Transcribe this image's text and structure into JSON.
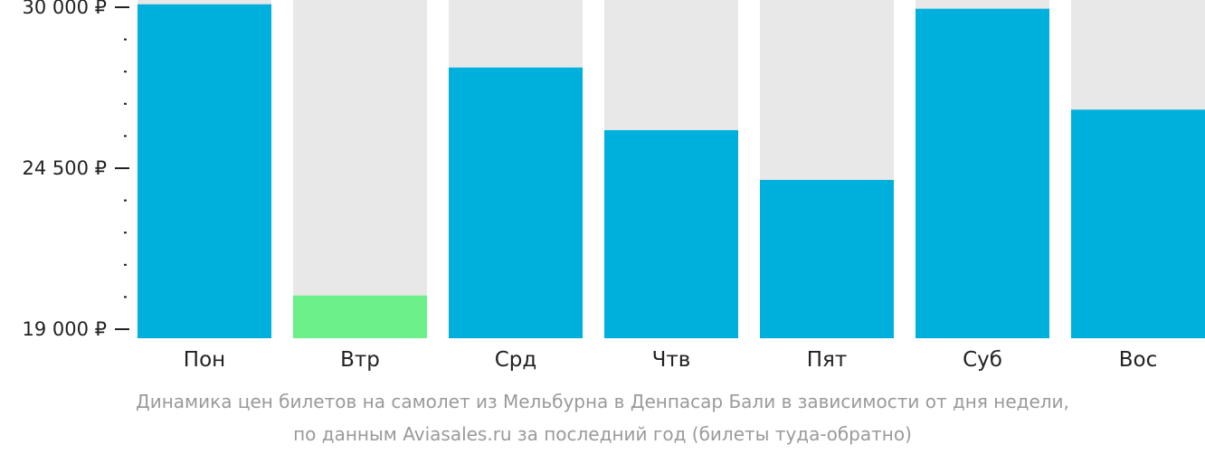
{
  "chart_data": {
    "type": "bar",
    "categories": [
      "Пон",
      "Втр",
      "Срд",
      "Чтв",
      "Пят",
      "Суб",
      "Вос"
    ],
    "values": [
      30100,
      20150,
      27940,
      25800,
      24100,
      29950,
      26500
    ],
    "ylim": [
      19000,
      30000
    ],
    "y_ticks": [
      {
        "value": 30000,
        "label": "30 000 ₽"
      },
      {
        "value": 24500,
        "label": "24 500 ₽"
      },
      {
        "value": 19000,
        "label": "19 000 ₽"
      }
    ],
    "y_minor_step": 1100,
    "highlight_index": 1,
    "colors": {
      "bar": "#00b0dc",
      "highlight": "#6bf08a",
      "bar_background": "#e8e8e8",
      "axis": "#222222"
    },
    "caption_lines": [
      "Динамика цен билетов на самолет из Мельбурна в Денпасар Бали в зависимости от дня недели,",
      "по данным Aviasales.ru за последний год (билеты туда-обратно)"
    ]
  }
}
